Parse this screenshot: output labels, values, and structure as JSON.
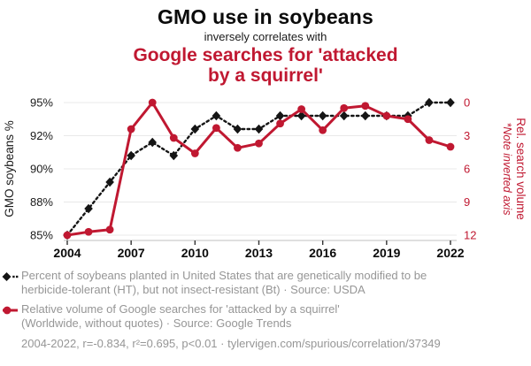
{
  "header": {
    "title": "GMO use in soybeans",
    "connector": "inversely correlates with",
    "red_title_lines": [
      "Google searches for 'attacked",
      "by a squirrel'"
    ]
  },
  "chart_data": {
    "type": "line",
    "x": [
      2004,
      2005,
      2006,
      2007,
      2008,
      2009,
      2010,
      2011,
      2012,
      2013,
      2014,
      2015,
      2016,
      2017,
      2018,
      2019,
      2020,
      2021,
      2022
    ],
    "x_ticks": [
      2004,
      2007,
      2010,
      2013,
      2016,
      2019,
      2022
    ],
    "series": [
      {
        "name": "Percent of soybeans planted in United States that are genetically modified to be herbicide-tolerant (HT), but not insect-resistant (Bt)",
        "source": "USDA",
        "axis": "left",
        "color": "#151515",
        "marker": "diamond",
        "line_style": "dotted",
        "values": [
          85,
          87,
          89,
          91,
          92,
          91,
          93,
          94,
          93,
          93,
          94,
          94,
          94,
          94,
          94,
          94,
          94,
          95,
          95
        ]
      },
      {
        "name": "Relative volume of Google searches for 'attacked by a squirrel' (Worldwide, without quotes)",
        "source": "Google Trends",
        "axis": "right",
        "color": "#c01831",
        "marker": "circle",
        "line_style": "solid",
        "values": [
          12.0,
          11.7,
          11.5,
          2.4,
          0.0,
          3.2,
          4.6,
          2.3,
          4.1,
          3.7,
          1.9,
          0.6,
          2.5,
          0.5,
          0.3,
          1.2,
          1.5,
          3.4,
          4.0
        ]
      }
    ],
    "left_axis": {
      "label": "GMO soybeans %",
      "tick_labels": [
        "85%",
        "88%",
        "90%",
        "92%",
        "95%"
      ],
      "tick_values": [
        85,
        87.5,
        90,
        92.5,
        95
      ],
      "range": [
        85,
        95
      ]
    },
    "right_axis": {
      "label": "Rel. search volume",
      "note": "*Note inverted axis",
      "ticks": [
        0,
        3,
        6,
        9,
        12
      ],
      "range": [
        0,
        12
      ],
      "inverted": true
    },
    "grid": true,
    "legend_position": "bottom"
  },
  "legend": {
    "items": [
      {
        "marker": "black-diamond-dotted",
        "color": "#151515",
        "lines": [
          "Percent of soybeans planted in United States that are genetically modified to be",
          "herbicide-tolerant (HT), but not insect-resistant (Bt) · Source: USDA"
        ]
      },
      {
        "marker": "red-circle-solid",
        "color": "#c01831",
        "lines": [
          "Relative volume of Google searches for 'attacked by a squirrel'",
          "(Worldwide, without quotes) · Source: Google Trends"
        ]
      }
    ]
  },
  "footer": {
    "text": "2004-2022, r=-0.834, r²=0.695, p<0.01 · tylervigen.com/spurious/correlation/37349"
  },
  "colors": {
    "accent_red": "#c01831",
    "series_black": "#151515",
    "muted_text": "#969696",
    "grid_line": "#e8e8e8",
    "axis_line": "#cccccc",
    "tick_mark": "#333333"
  }
}
